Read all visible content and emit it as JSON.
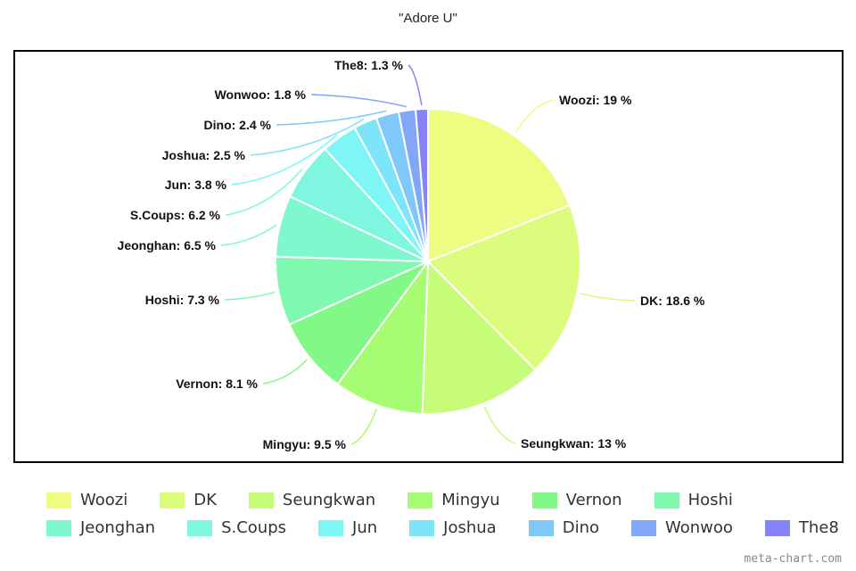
{
  "title": "\"Adore U\"",
  "watermark": "meta-chart.com",
  "chart_data": {
    "type": "pie",
    "title": "\"Adore U\"",
    "legend_placement": "bottom",
    "slices": [
      {
        "name": "Woozi",
        "value": 19,
        "label": "Woozi: 19 %",
        "color": "#eefc82"
      },
      {
        "name": "DK",
        "value": 18.6,
        "label": "DK: 18.6 %",
        "color": "#dcfc7e"
      },
      {
        "name": "Seungkwan",
        "value": 13,
        "label": "Seungkwan: 13 %",
        "color": "#c6fc78"
      },
      {
        "name": "Mingyu",
        "value": 9.5,
        "label": "Mingyu: 9.5 %",
        "color": "#a6fc72"
      },
      {
        "name": "Vernon",
        "value": 8.1,
        "label": "Vernon: 8.1 %",
        "color": "#82f886"
      },
      {
        "name": "Hoshi",
        "value": 7.3,
        "label": "Hoshi: 7.3 %",
        "color": "#80f8b0"
      },
      {
        "name": "Jeonghan",
        "value": 6.5,
        "label": "Jeonghan: 6.5 %",
        "color": "#7ef8cc"
      },
      {
        "name": "S.Coups",
        "value": 6.2,
        "label": "S.Coups: 6.2 %",
        "color": "#7ef6e0"
      },
      {
        "name": "Jun",
        "value": 3.8,
        "label": "Jun: 3.8 %",
        "color": "#7ef6f6"
      },
      {
        "name": "Joshua",
        "value": 2.5,
        "label": "Joshua: 2.5 %",
        "color": "#7ee4fa"
      },
      {
        "name": "Dino",
        "value": 2.4,
        "label": "Dino: 2.4 %",
        "color": "#7ec8fa"
      },
      {
        "name": "Wonwoo",
        "value": 1.8,
        "label": "Wonwoo: 1.8 %",
        "color": "#82a6f8"
      },
      {
        "name": "The8",
        "value": 1.3,
        "label": "The8: 1.3 %",
        "color": "#8682f8"
      }
    ]
  }
}
